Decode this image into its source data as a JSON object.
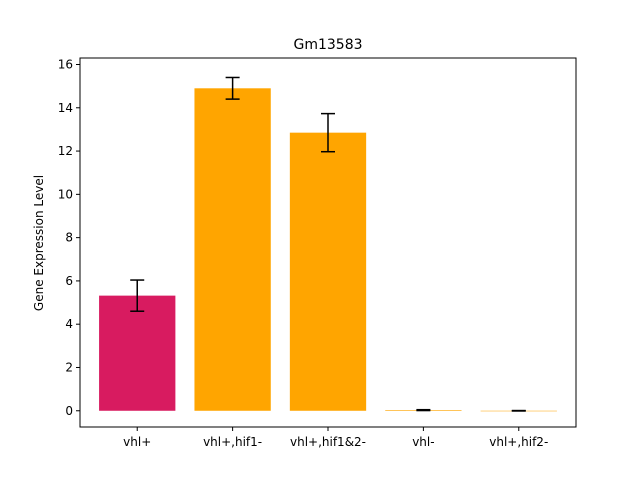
{
  "chart_data": {
    "type": "bar",
    "title": "Gm13583",
    "xlabel": "",
    "ylabel": "Gene Expression Level",
    "categories": [
      "vhl+",
      "vhl+,hif1-",
      "vhl+,hif1&2-",
      "vhl-",
      "vhl+,hif2-"
    ],
    "values": [
      5.32,
      14.9,
      12.85,
      0.03,
      0.0
    ],
    "errors": [
      0.72,
      0.5,
      0.88,
      0.02,
      0.01
    ],
    "colors": [
      "#d81b60",
      "#ffa500",
      "#ffa500",
      "#ffa500",
      "#ffa500"
    ],
    "ylim": [
      -0.75,
      16.3
    ],
    "yticks": [
      0,
      2,
      4,
      6,
      8,
      10,
      12,
      14,
      16
    ],
    "grid": false
  }
}
